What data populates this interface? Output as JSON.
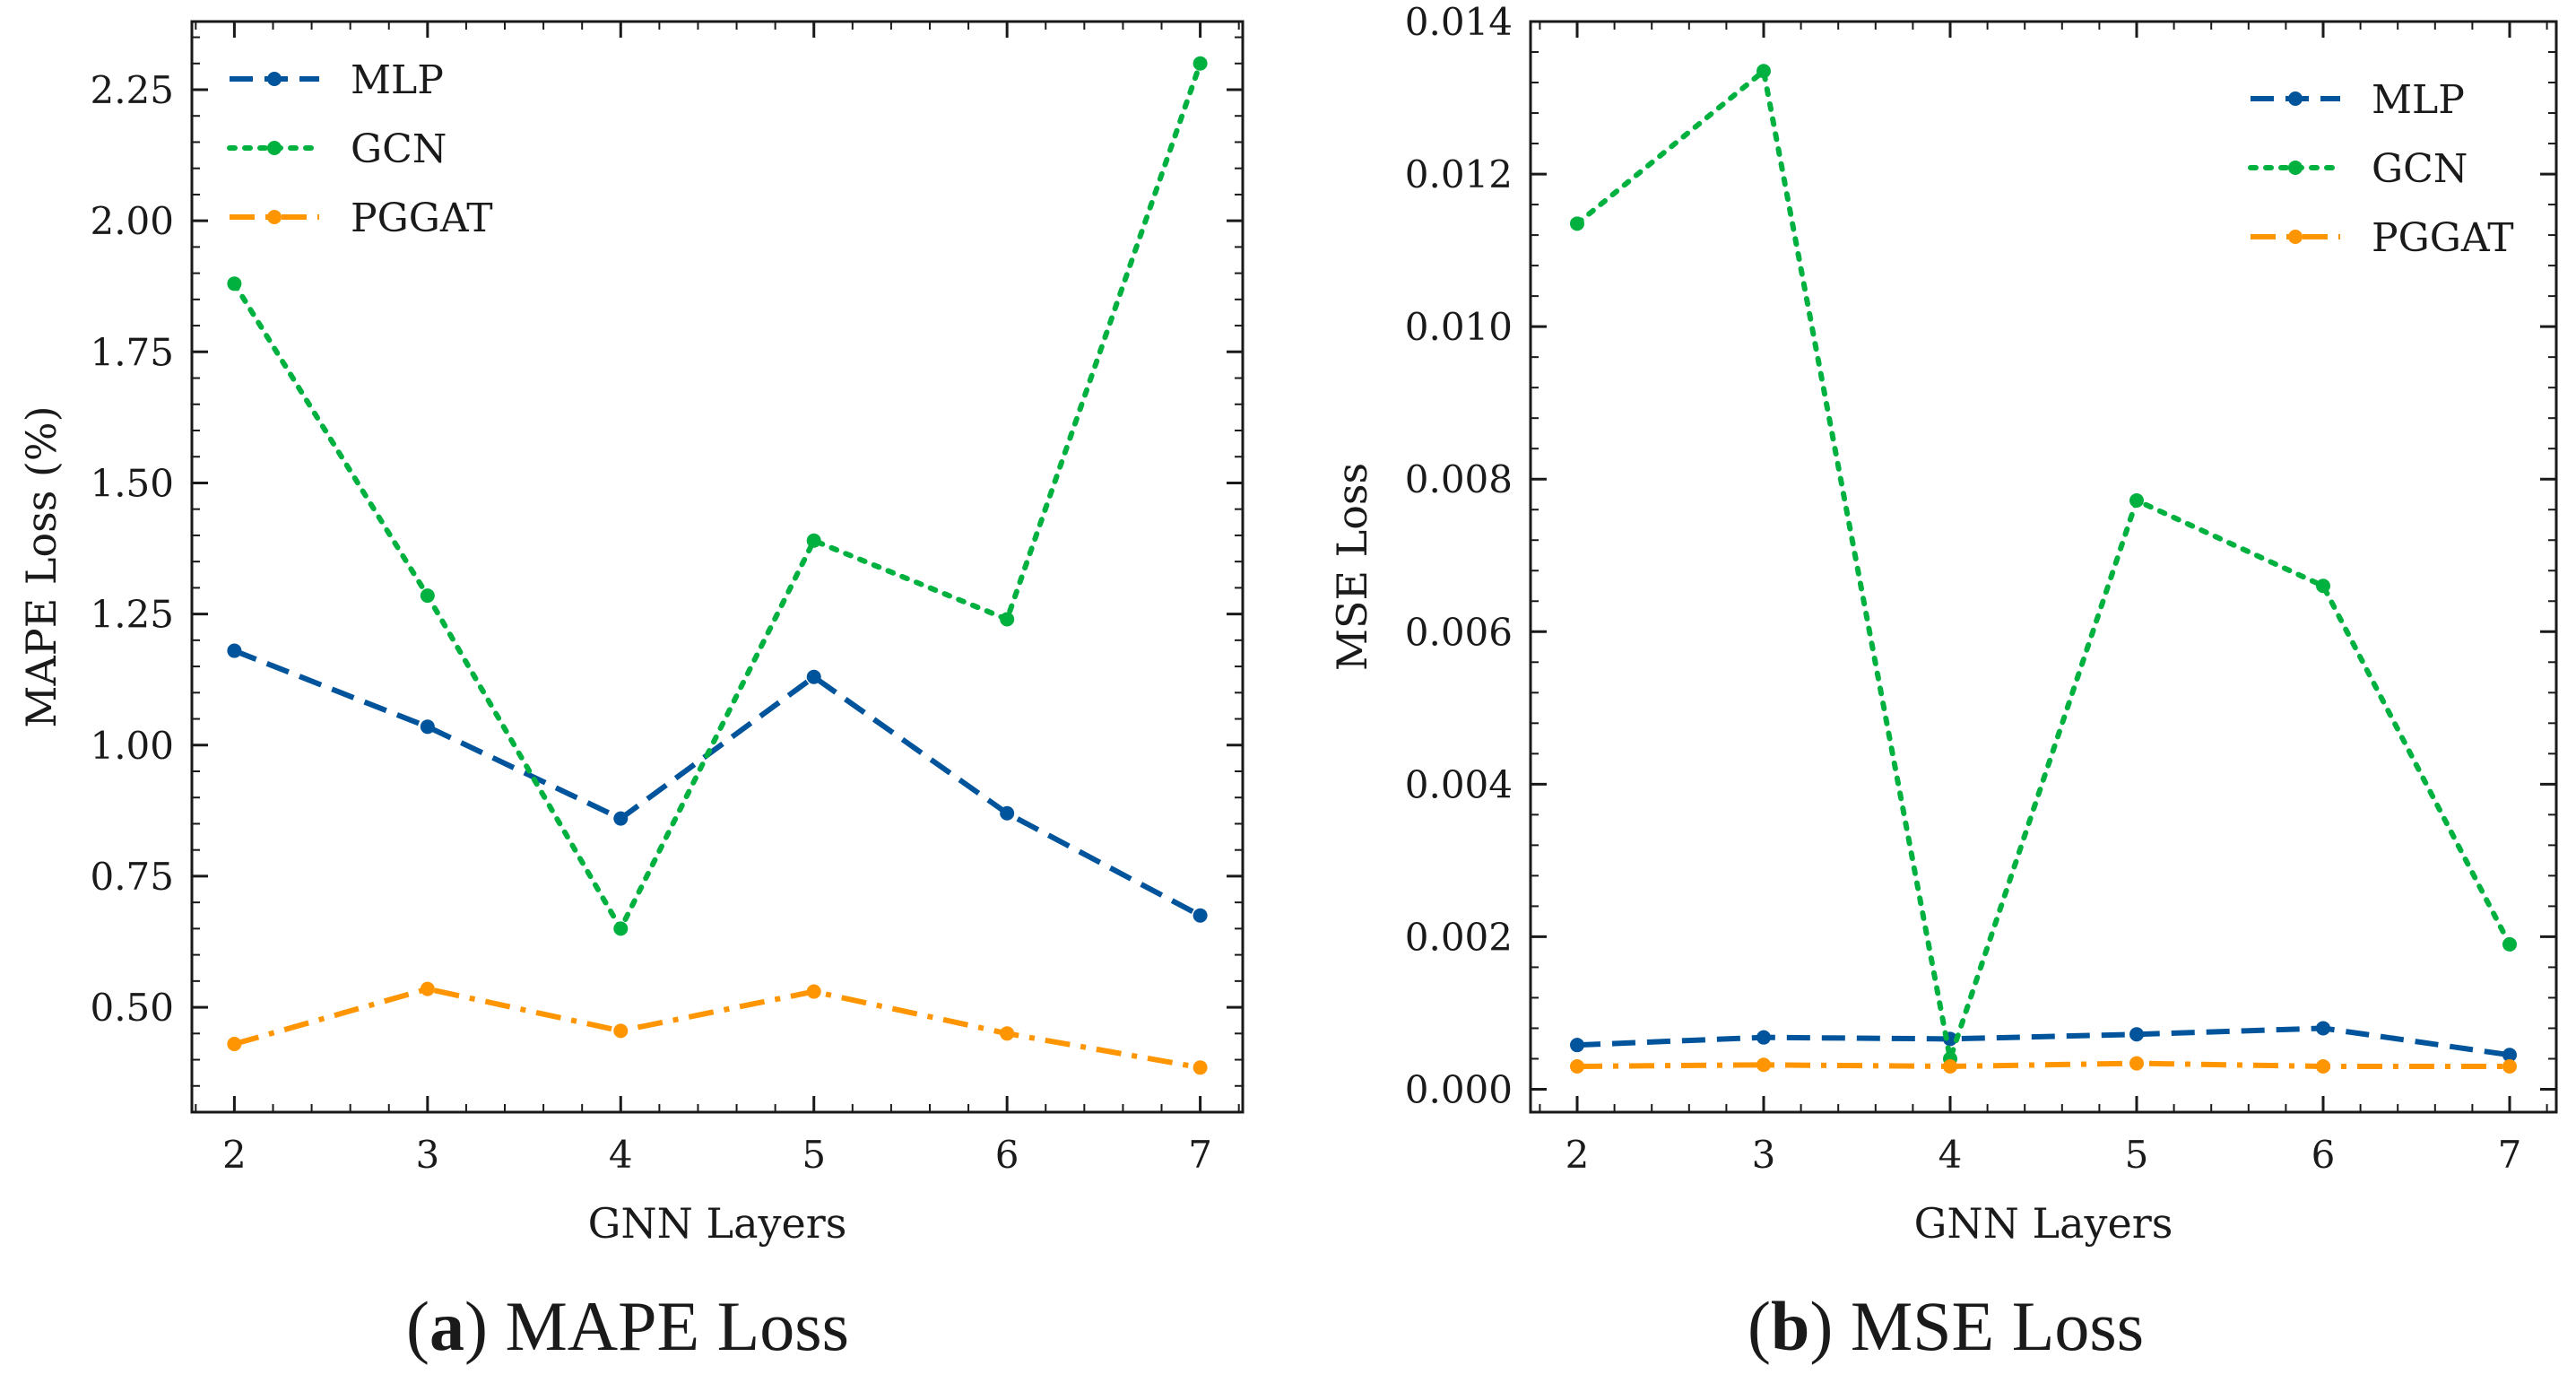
{
  "chart_data": [
    {
      "type": "line",
      "x": [
        2,
        3,
        4,
        5,
        6,
        7
      ],
      "xlabel": "GNN Layers",
      "ylabel": "MAPE Loss (%)",
      "xlim": [
        1.78,
        7.22
      ],
      "ylim": [
        0.3,
        2.38
      ],
      "xticks": [
        "2",
        "3",
        "4",
        "5",
        "6",
        "7"
      ],
      "yticks": [
        0.5,
        0.75,
        1.0,
        1.25,
        1.5,
        1.75,
        2.0,
        2.25
      ],
      "ytick_labels": [
        "0.50",
        "0.75",
        "1.00",
        "1.25",
        "1.50",
        "1.75",
        "2.00",
        "2.25"
      ],
      "legend_position": "top-left",
      "series": [
        {
          "name": "MLP",
          "color": "#00549b",
          "style": "dashed",
          "values": [
            1.18,
            1.035,
            0.86,
            1.13,
            0.87,
            0.675
          ]
        },
        {
          "name": "GCN",
          "color": "#00b140",
          "style": "dotted",
          "values": [
            1.88,
            1.285,
            0.65,
            1.39,
            1.24,
            2.3
          ]
        },
        {
          "name": "PGGAT",
          "color": "#ff9500",
          "style": "dashdot",
          "values": [
            0.43,
            0.535,
            0.455,
            0.53,
            0.45,
            0.385
          ]
        }
      ],
      "caption": {
        "letter": "a",
        "open": "(",
        "close": ")",
        "text": " MAPE Loss"
      }
    },
    {
      "type": "line",
      "x": [
        2,
        3,
        4,
        5,
        6,
        7
      ],
      "xlabel": "GNN Layers",
      "ylabel": "MSE Loss",
      "xlim": [
        1.75,
        7.25
      ],
      "ylim": [
        -0.0003,
        0.014
      ],
      "xticks": [
        "2",
        "3",
        "4",
        "5",
        "6",
        "7"
      ],
      "yticks": [
        0.0,
        0.002,
        0.004,
        0.006,
        0.008,
        0.01,
        0.012,
        0.014
      ],
      "ytick_labels": [
        "0.000",
        "0.002",
        "0.004",
        "0.006",
        "0.008",
        "0.010",
        "0.012",
        "0.014"
      ],
      "legend_position": "top-right",
      "series": [
        {
          "name": "MLP",
          "color": "#00549b",
          "style": "dashed",
          "values": [
            0.00058,
            0.00068,
            0.00066,
            0.00072,
            0.0008,
            0.00045
          ]
        },
        {
          "name": "GCN",
          "color": "#00b140",
          "style": "dotted",
          "values": [
            0.01135,
            0.01335,
            0.0004,
            0.00772,
            0.0066,
            0.0019
          ]
        },
        {
          "name": "PGGAT",
          "color": "#ff9500",
          "style": "dashdot",
          "values": [
            0.0003,
            0.00032,
            0.0003,
            0.00034,
            0.0003,
            0.0003
          ]
        }
      ],
      "caption": {
        "letter": "b",
        "open": "(",
        "close": ")",
        "text": " MSE Loss"
      }
    }
  ]
}
